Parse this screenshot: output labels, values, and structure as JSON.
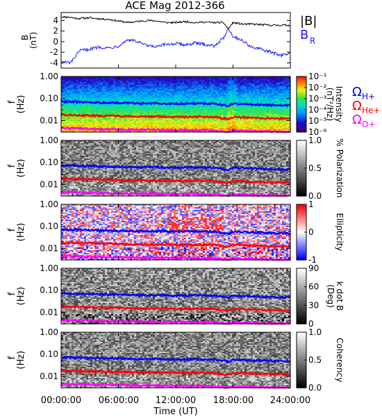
{
  "title": "ACE Mag 2012-366",
  "xaxis": {
    "label": "Time (UT)",
    "ticks": [
      "00:00:00",
      "06:00:00",
      "12:00:00",
      "18:00:00",
      "24:00:00"
    ],
    "range_hours": [
      0,
      24
    ]
  },
  "colors": {
    "B_total": "#000000",
    "B_R": "#1a1aff",
    "omega_H": "#0000ff",
    "omega_He": "#ff0000",
    "omega_O": "#ff00ff"
  },
  "chart_data": [
    {
      "type": "line",
      "panel": "magnetic-field",
      "ylabel": "B",
      "yunit": "(nT)",
      "ylim": [
        -5,
        5.5
      ],
      "yticks": [
        "4",
        "2",
        "0",
        "-2",
        "-4"
      ],
      "x_hours": [
        0,
        1,
        1.5,
        2,
        3,
        4,
        5,
        6,
        7,
        8,
        9,
        10,
        11,
        12,
        13,
        14,
        15,
        16,
        17,
        17.5,
        18,
        19,
        20,
        21,
        22,
        23,
        24
      ],
      "series": [
        {
          "name": "|B|",
          "values": [
            4.7,
            4.6,
            4.4,
            4.4,
            4.5,
            4.3,
            4.2,
            3.9,
            3.6,
            3.8,
            4.0,
            3.9,
            3.6,
            3.6,
            3.8,
            3.6,
            3.7,
            3.6,
            3.6,
            2.4,
            3.6,
            3.3,
            3.3,
            3.2,
            3.1,
            3.1,
            3.1
          ]
        },
        {
          "name": "B_R",
          "values": [
            -3.8,
            -4.0,
            -2.8,
            -1.7,
            -1.4,
            -1.0,
            -1.2,
            -0.8,
            0.4,
            0.0,
            -0.8,
            -1.0,
            -0.5,
            -0.4,
            -0.6,
            -0.3,
            -0.5,
            -0.8,
            0.6,
            2.6,
            1.0,
            0.2,
            -1.1,
            -1.5,
            -2.0,
            -2.6,
            -2.2
          ]
        }
      ]
    },
    {
      "type": "heatmap",
      "panel": "intensity",
      "ylabel": "f",
      "yunit": "(Hz)",
      "ylim": [
        0.003,
        1.0
      ],
      "ytick_labels": [
        "1.00",
        "0.10",
        "0.01"
      ],
      "colorbar": {
        "label": "Intensity",
        "unit": "(nT²/Hz)",
        "scale": "log",
        "ticks": [
          "10⁻¹",
          "10⁻²",
          "10⁻³",
          "10⁻⁴",
          "10⁻⁵",
          "10⁻⁶"
        ]
      }
    },
    {
      "type": "heatmap",
      "panel": "polarization",
      "ylabel": "f",
      "yunit": "(Hz)",
      "ylim": [
        0.003,
        1.0
      ],
      "ytick_labels": [
        "1.00",
        "0.10",
        "0.01"
      ],
      "colorbar": {
        "label": "% Polarization",
        "ticks": [
          "1.0",
          "0.5",
          "0.0"
        ]
      }
    },
    {
      "type": "heatmap",
      "panel": "ellipticity",
      "ylabel": "f",
      "yunit": "(Hz)",
      "ylim": [
        0.003,
        1.0
      ],
      "ytick_labels": [
        "1.00",
        "0.10",
        "0.01"
      ],
      "colorbar": {
        "label": "Ellipticity",
        "ticks": [
          "1",
          "0",
          "-1"
        ]
      }
    },
    {
      "type": "heatmap",
      "panel": "k-dot-b",
      "ylabel": "f",
      "yunit": "(Hz)",
      "ylim": [
        0.003,
        1.0
      ],
      "ytick_labels": [
        "1.00",
        "0.10",
        "0.01"
      ],
      "colorbar": {
        "label": "k dot B",
        "unit": "(Deg)",
        "ticks": [
          "90",
          "60",
          "30",
          "0"
        ]
      }
    },
    {
      "type": "heatmap",
      "panel": "coherency",
      "ylabel": "f",
      "yunit": "(Hz)",
      "ylim": [
        0.003,
        1.0
      ],
      "ytick_labels": [
        "1.00",
        "0.10",
        "0.01"
      ],
      "colorbar": {
        "label": "Coherency",
        "ticks": [
          "1.0",
          "0.5",
          "0.0"
        ]
      }
    }
  ],
  "gyrofrequency_lines": {
    "x_hours": [
      0,
      2,
      4,
      6,
      8,
      10,
      12,
      14,
      16,
      17.5,
      18,
      20,
      22,
      24
    ],
    "series": [
      {
        "name": "ΩH+",
        "values": [
          0.072,
          0.07,
          0.066,
          0.064,
          0.06,
          0.061,
          0.058,
          0.06,
          0.058,
          0.046,
          0.058,
          0.053,
          0.05,
          0.048
        ]
      },
      {
        "name": "ΩHe+",
        "values": [
          0.018,
          0.0175,
          0.0165,
          0.016,
          0.015,
          0.0152,
          0.0145,
          0.015,
          0.0145,
          0.0115,
          0.0145,
          0.0133,
          0.0125,
          0.012
        ]
      },
      {
        "name": "ΩO+",
        "values": [
          0.0045,
          0.0044,
          0.0041,
          0.004,
          0.0038,
          0.0038,
          0.0036,
          0.0037,
          0.0036,
          0.0029,
          0.0036,
          0.0033,
          0.0031,
          0.003
        ]
      }
    ]
  },
  "legend": {
    "top": [
      {
        "label": "|B|",
        "color": "#000000"
      },
      {
        "label": "B",
        "sub": "R",
        "color": "#1a1aff"
      }
    ],
    "freq": [
      {
        "label": "Ω",
        "sub": "H+",
        "color": "#0000ff"
      },
      {
        "label": "Ω",
        "sub": "He+",
        "color": "#ff0000"
      },
      {
        "label": "Ω",
        "sub": "O+",
        "color": "#ff00ff"
      }
    ]
  }
}
